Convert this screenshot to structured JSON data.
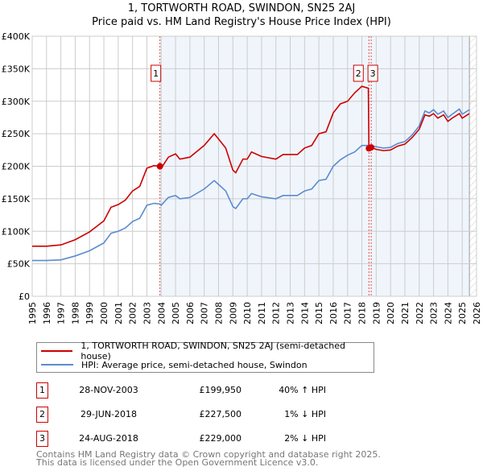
{
  "chart_data": {
    "type": "line",
    "title": "1, TORTWORTH ROAD, SWINDON, SN25 2AJ",
    "subtitle": "Price paid vs. HM Land Registry's House Price Index (HPI)",
    "xlim": [
      1995,
      2026
    ],
    "ylim": [
      0,
      400000
    ],
    "y_ticks": [
      {
        "v": 0,
        "label": "£0"
      },
      {
        "v": 50000,
        "label": "£50K"
      },
      {
        "v": 100000,
        "label": "£100K"
      },
      {
        "v": 150000,
        "label": "£150K"
      },
      {
        "v": 200000,
        "label": "£200K"
      },
      {
        "v": 250000,
        "label": "£250K"
      },
      {
        "v": 300000,
        "label": "£300K"
      },
      {
        "v": 350000,
        "label": "£350K"
      },
      {
        "v": 400000,
        "label": "£400K"
      }
    ],
    "x_ticks": [
      "1995",
      "1996",
      "1997",
      "1998",
      "1999",
      "2000",
      "2001",
      "2002",
      "2003",
      "2004",
      "2005",
      "2006",
      "2007",
      "2008",
      "2009",
      "2010",
      "2011",
      "2012",
      "2013",
      "2014",
      "2015",
      "2016",
      "2017",
      "2018",
      "2019",
      "2020",
      "2021",
      "2022",
      "2023",
      "2024",
      "2025",
      "2026"
    ],
    "grid": true,
    "series": [
      {
        "name": "1, TORTWORTH ROAD, SWINDON, SN25 2AJ (semi-detached house)",
        "color": "#cc0000",
        "x": [
          1995,
          1996,
          1997,
          1998,
          1999,
          2000,
          2000.5,
          2001,
          2001.5,
          2002,
          2002.5,
          2003,
          2003.5,
          2003.9,
          2004,
          2004.5,
          2005,
          2005.3,
          2006,
          2007,
          2007.7,
          2008,
          2008.5,
          2009,
          2009.2,
          2009.7,
          2010,
          2010.3,
          2011,
          2012,
          2012.5,
          2013,
          2013.5,
          2014,
          2014.5,
          2015,
          2015.5,
          2016,
          2016.5,
          2017,
          2017.5,
          2018,
          2018.45,
          2018.49,
          2018.65,
          2019,
          2019.5,
          2020,
          2020.5,
          2021,
          2021.5,
          2022,
          2022.4,
          2022.7,
          2023,
          2023.3,
          2023.7,
          2024,
          2024.3,
          2024.8,
          2025,
          2025.5
        ],
        "y": [
          77,
          77,
          79,
          87,
          99,
          116,
          137,
          141,
          148,
          162,
          169,
          197,
          201,
          200,
          197,
          214,
          219,
          211,
          214,
          232,
          250,
          242,
          228,
          194,
          190,
          211,
          211,
          222,
          215,
          211,
          218,
          218,
          218,
          228,
          232,
          250,
          253,
          282,
          296,
          300,
          313,
          323,
          320,
          227.5,
          229,
          226,
          224,
          225,
          231,
          234,
          244,
          257,
          279,
          277,
          281,
          274,
          279,
          269,
          274,
          281,
          274,
          281
        ]
      },
      {
        "name": "HPI: Average price, semi-detached house, Swindon",
        "color": "#5b8bd0",
        "x": [
          1995,
          1996,
          1997,
          1998,
          1999,
          2000,
          2000.5,
          2001,
          2001.5,
          2002,
          2002.5,
          2003,
          2003.5,
          2003.9,
          2004,
          2004.5,
          2005,
          2005.3,
          2006,
          2007,
          2007.7,
          2008,
          2008.5,
          2009,
          2009.2,
          2009.7,
          2010,
          2010.3,
          2011,
          2012,
          2012.5,
          2013,
          2013.5,
          2014,
          2014.5,
          2015,
          2015.5,
          2016,
          2016.5,
          2017,
          2017.5,
          2018,
          2018.5,
          2019,
          2019.5,
          2020,
          2020.5,
          2021,
          2021.5,
          2022,
          2022.4,
          2022.7,
          2023,
          2023.3,
          2023.7,
          2024,
          2024.3,
          2024.8,
          2025,
          2025.5
        ],
        "y": [
          55,
          55,
          56,
          62,
          70,
          82,
          97,
          100,
          105,
          115,
          120,
          140,
          143,
          142,
          140,
          152,
          155,
          150,
          152,
          165,
          178,
          172,
          162,
          138,
          135,
          150,
          150,
          158,
          153,
          150,
          155,
          155,
          155,
          162,
          165,
          178,
          180,
          200,
          210,
          217,
          222,
          232,
          232,
          230,
          228,
          229,
          235,
          238,
          248,
          262,
          285,
          282,
          287,
          280,
          285,
          275,
          280,
          288,
          280,
          287
        ]
      }
    ],
    "y_units": "£ thousands",
    "sales": [
      {
        "n": "1",
        "x": 2003.91,
        "price": 199.95
      },
      {
        "n": "2",
        "x": 2018.49,
        "price": 227.5
      },
      {
        "n": "3",
        "x": 2018.65,
        "price": 229
      }
    ],
    "shaded_from": 2003.91,
    "hatched_from": 2025.5,
    "legend_position": "below"
  },
  "table": [
    {
      "n": "1",
      "date": "28-NOV-2003",
      "price": "£199,950",
      "hpi": "40% ↑ HPI"
    },
    {
      "n": "2",
      "date": "29-JUN-2018",
      "price": "£227,500",
      "hpi": "1% ↓ HPI"
    },
    {
      "n": "3",
      "date": "24-AUG-2018",
      "price": "£229,000",
      "hpi": "2% ↓ HPI"
    }
  ],
  "footer": {
    "line1": "Contains HM Land Registry data © Crown copyright and database right 2025.",
    "line2": "This data is licensed under the Open Government Licence v3.0."
  }
}
